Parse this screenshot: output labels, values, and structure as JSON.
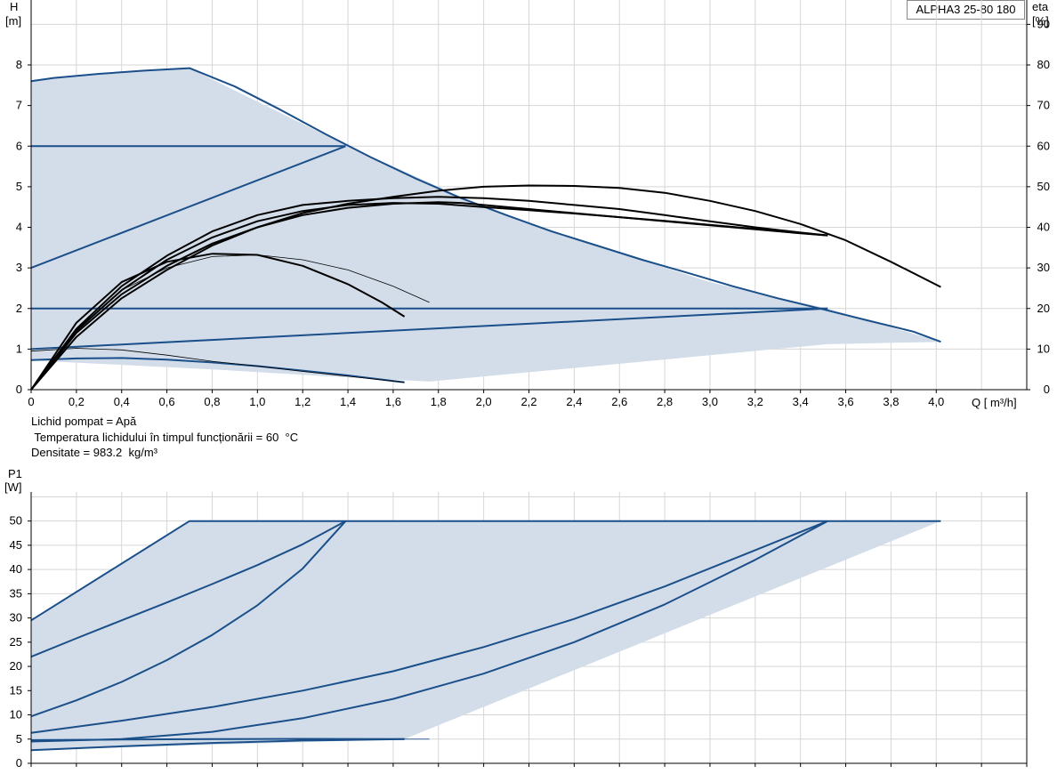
{
  "model_label": "ALPHA3 25-80 180",
  "info": {
    "line1": "Lichid pompat = Apă",
    "line2": " Temperatura lichidului în timpul funcționării = 60  °C",
    "line3": "Densitate = 983.2  kg/m³"
  },
  "colors": {
    "region_fill": "#d3dde9",
    "curve_blue": "#1a4f8a",
    "curve_black": "#000000",
    "grid": "#d6d6d6"
  },
  "chart_data": [
    {
      "type": "line",
      "title": "",
      "ylabel_line1": "H",
      "ylabel_line2": "[m]",
      "y2label_line1": "eta",
      "y2label_line2": "[%]",
      "xlabel": "Q [ m³/h]",
      "xlim": [
        0,
        4.4
      ],
      "ylim": [
        0,
        9.6
      ],
      "y2lim": [
        0,
        96
      ],
      "x_ticks": [
        "0",
        "0,2",
        "0,4",
        "0,6",
        "0,8",
        "1,0",
        "1,2",
        "1,4",
        "1,6",
        "1,8",
        "2,0",
        "2,2",
        "2,4",
        "2,6",
        "2,8",
        "3,0",
        "3,2",
        "3,4",
        "3,6",
        "3,8",
        "4,0"
      ],
      "y_ticks": [
        "0",
        "1",
        "2",
        "3",
        "4",
        "5",
        "6",
        "7",
        "8"
      ],
      "y2_ticks": [
        "0",
        "10",
        "20",
        "30",
        "40",
        "50",
        "60",
        "70",
        "80",
        "90"
      ],
      "grid": true,
      "operating_region": {
        "x": [
          0,
          0.1,
          0.3,
          0.5,
          0.7,
          1.0,
          1.4,
          2.0,
          2.5,
          3.0,
          3.52,
          4.02,
          3.52,
          1.76,
          1.4,
          0.8,
          0,
          0
        ],
        "y": [
          7.6,
          7.7,
          7.8,
          7.88,
          7.92,
          7.1,
          6.0,
          4.5,
          3.55,
          2.65,
          2.0,
          1.18,
          1.12,
          0.2,
          0.3,
          0.5,
          0.72,
          7.6
        ]
      },
      "series": [
        {
          "color": "blue",
          "x": [
            0,
            0.1,
            0.3,
            0.5,
            0.7,
            0.9,
            1.1,
            1.3,
            1.5,
            1.7,
            1.9,
            2.1,
            2.3,
            2.5,
            2.7,
            2.9,
            3.1,
            3.3,
            3.5,
            3.7,
            3.9,
            4.02
          ],
          "y": [
            7.6,
            7.68,
            7.78,
            7.86,
            7.92,
            7.47,
            6.9,
            6.3,
            5.73,
            5.2,
            4.72,
            4.3,
            3.9,
            3.55,
            3.2,
            2.88,
            2.55,
            2.25,
            1.98,
            1.7,
            1.43,
            1.18
          ]
        },
        {
          "color": "blue",
          "x": [
            0,
            1.39
          ],
          "y": [
            6.0,
            6.0
          ]
        },
        {
          "color": "blue",
          "x": [
            0,
            1.39
          ],
          "y": [
            3.0,
            6.0
          ]
        },
        {
          "color": "blue",
          "x": [
            0,
            3.52
          ],
          "y": [
            2.0,
            2.0
          ]
        },
        {
          "color": "blue",
          "x": [
            0,
            3.52
          ],
          "y": [
            1.0,
            2.0
          ]
        },
        {
          "color": "blue",
          "x": [
            0,
            0.2,
            0.4,
            0.6,
            0.8,
            1.0,
            1.2,
            1.4,
            1.65
          ],
          "y": [
            0.73,
            0.77,
            0.78,
            0.74,
            0.67,
            0.58,
            0.47,
            0.35,
            0.18
          ]
        },
        {
          "color": "black",
          "x": [
            0,
            0.2,
            0.4,
            0.6,
            0.8,
            1.0,
            1.2,
            1.4,
            1.6,
            1.8,
            2.0,
            2.2,
            2.4,
            2.6,
            2.8,
            3.0,
            3.2,
            3.4,
            3.6,
            3.8,
            4.02
          ],
          "y": [
            0,
            1.3,
            2.25,
            2.95,
            3.55,
            4.0,
            4.35,
            4.58,
            4.75,
            4.9,
            5.0,
            5.03,
            5.02,
            4.97,
            4.85,
            4.65,
            4.4,
            4.08,
            3.68,
            3.15,
            2.53
          ]
        },
        {
          "color": "black",
          "x": [
            0,
            0.2,
            0.4,
            0.6,
            0.8,
            1.0,
            1.2,
            1.4,
            1.6,
            1.8,
            2.0,
            2.2,
            2.4,
            2.6,
            2.8,
            3.0,
            3.2,
            3.4,
            3.52
          ],
          "y": [
            0,
            1.5,
            2.55,
            3.3,
            3.9,
            4.3,
            4.55,
            4.65,
            4.72,
            4.75,
            4.72,
            4.65,
            4.55,
            4.45,
            4.3,
            4.15,
            4.0,
            3.87,
            3.8
          ]
        },
        {
          "color": "black",
          "x": [
            0,
            0.2,
            0.4,
            0.6,
            0.8,
            1.0,
            1.2,
            1.4,
            1.6,
            1.8,
            2.0,
            2.2,
            2.4,
            2.6,
            2.8,
            3.0,
            3.2,
            3.4,
            3.52
          ],
          "y": [
            0,
            1.45,
            2.45,
            3.2,
            3.75,
            4.15,
            4.4,
            4.55,
            4.6,
            4.58,
            4.5,
            4.42,
            4.34,
            4.25,
            4.16,
            4.06,
            3.96,
            3.86,
            3.8
          ]
        },
        {
          "color": "black",
          "x": [
            0,
            0.2,
            0.4,
            0.6,
            0.8,
            1.0,
            1.2,
            1.4,
            1.6,
            1.8,
            1.9,
            2.0,
            2.2,
            2.6,
            3.0,
            3.4,
            3.52
          ],
          "y": [
            0,
            1.4,
            2.35,
            3.05,
            3.6,
            4.0,
            4.3,
            4.48,
            4.58,
            4.62,
            4.6,
            4.55,
            4.45,
            4.25,
            4.05,
            3.85,
            3.8
          ]
        },
        {
          "color": "black",
          "x": [
            0,
            0.2,
            0.4,
            0.6,
            0.8,
            1.0,
            1.2,
            1.4,
            1.55,
            1.65
          ],
          "y": [
            0,
            1.65,
            2.65,
            3.15,
            3.35,
            3.32,
            3.05,
            2.6,
            2.15,
            1.8
          ]
        },
        {
          "color": "black",
          "x": [
            0,
            0.2,
            0.4,
            0.6,
            0.8,
            1.0,
            1.2,
            1.4,
            1.6,
            1.76
          ],
          "y": [
            0,
            1.45,
            2.45,
            3.0,
            3.28,
            3.32,
            3.2,
            2.95,
            2.55,
            2.15
          ],
          "thin": true
        },
        {
          "color": "black",
          "x": [
            0,
            0.2,
            0.4,
            0.6,
            0.8,
            1.0,
            1.2,
            1.4,
            1.65
          ],
          "y": [
            0.95,
            1.02,
            0.98,
            0.85,
            0.7,
            0.58,
            0.45,
            0.33,
            0.18
          ],
          "thin": true
        }
      ]
    },
    {
      "type": "line",
      "title": "",
      "ylabel_line1": "P1",
      "ylabel_line2": "[W]",
      "xlim": [
        0,
        4.4
      ],
      "ylim": [
        0,
        56
      ],
      "y_ticks": [
        "0",
        "5",
        "10",
        "15",
        "20",
        "25",
        "30",
        "35",
        "40",
        "45",
        "50"
      ],
      "grid": true,
      "operating_region": {
        "x": [
          0,
          0.7,
          4.02,
          1.65,
          0,
          0
        ],
        "y": [
          29.5,
          50,
          50,
          5.0,
          2.7,
          29.5
        ]
      },
      "series": [
        {
          "color": "blue",
          "x": [
            0,
            0.7,
            4.02
          ],
          "y": [
            29.5,
            50,
            50
          ]
        },
        {
          "color": "blue",
          "x": [
            0,
            0.2,
            0.4,
            0.6,
            0.8,
            1.0,
            1.2,
            1.39
          ],
          "y": [
            22,
            25.8,
            29.5,
            33.2,
            37.0,
            40.9,
            45.2,
            50
          ]
        },
        {
          "color": "blue",
          "x": [
            0,
            0.2,
            0.4,
            0.6,
            0.8,
            1.0,
            1.2,
            1.39
          ],
          "y": [
            9.7,
            13.0,
            16.8,
            21.3,
            26.5,
            32.6,
            40.2,
            50
          ]
        },
        {
          "color": "blue",
          "x": [
            0,
            0.4,
            0.8,
            1.2,
            1.6,
            2.0,
            2.4,
            2.8,
            3.2,
            3.52
          ],
          "y": [
            6.3,
            8.8,
            11.6,
            15.0,
            19.0,
            24.0,
            29.8,
            36.5,
            44.0,
            50
          ]
        },
        {
          "color": "blue",
          "x": [
            0,
            0.4,
            0.8,
            1.2,
            1.6,
            2.0,
            2.4,
            2.8,
            3.2,
            3.52
          ],
          "y": [
            4.5,
            5.0,
            6.5,
            9.3,
            13.3,
            18.5,
            25.0,
            32.8,
            42.0,
            50
          ]
        },
        {
          "color": "blue",
          "x": [
            0,
            0.4,
            0.8,
            1.2,
            1.65
          ],
          "y": [
            4.8,
            4.9,
            5.0,
            5.05,
            5.0
          ]
        },
        {
          "color": "blue",
          "x": [
            0,
            0.4,
            0.8,
            1.2,
            1.65
          ],
          "y": [
            2.7,
            3.5,
            4.2,
            4.7,
            5.0
          ]
        },
        {
          "color": "blue",
          "x": [
            1.65,
            1.76
          ],
          "y": [
            5.0,
            5.0
          ],
          "thin": true
        }
      ]
    }
  ]
}
